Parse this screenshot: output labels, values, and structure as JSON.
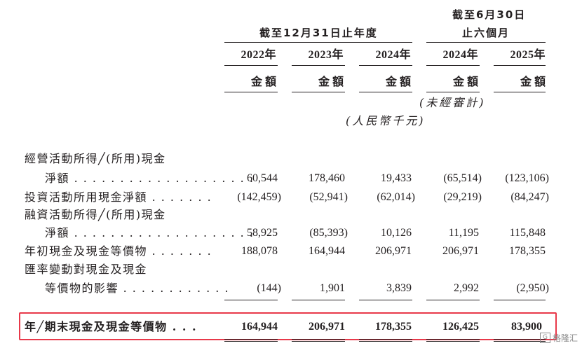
{
  "header": {
    "group_year": "截至12月31日止年度",
    "group_six_line1": "截至6月30日",
    "group_six_line2": "止六個月",
    "years": [
      "2022年",
      "2023年",
      "2024年",
      "2024年",
      "2025年"
    ],
    "amount_label": "金額",
    "unaudited": "(未經審計)",
    "unit": "(人民幣千元)"
  },
  "rows": [
    {
      "label_line1": "經營活動所得╱(所用)現金",
      "label_line2": "淨額 . . . . . . . . . . . . . . . . . . . .",
      "values": [
        "60,544",
        "178,460",
        "19,433",
        "(65,514)",
        "(123,106)"
      ]
    },
    {
      "label_line1": "投資活動所用現金淨額 . . . . . . .",
      "values": [
        "(142,459)",
        "(52,941)",
        "(62,014)",
        "(29,219)",
        "(84,247)"
      ]
    },
    {
      "label_line1": "融資活動所得╱(所用)現金",
      "label_line2": "淨額 . . . . . . . . . . . . . . . . . . . .",
      "values": [
        "58,925",
        "(85,393)",
        "10,126",
        "11,195",
        "115,848"
      ]
    },
    {
      "label_line1": "年初現金及現金等價物 . . . . . . .",
      "values": [
        "188,078",
        "164,944",
        "206,971",
        "206,971",
        "178,355"
      ]
    },
    {
      "label_line1": "匯率變動對現金及現金",
      "label_line2": "等價物的影響 . . . . . . . . . . . .",
      "values": [
        "(144)",
        "1,901",
        "3,839",
        "2,992",
        "(2,950)"
      ]
    }
  ],
  "total": {
    "label": "年╱期末現金及現金等價物 . . .",
    "values": [
      "164,944",
      "206,971",
      "178,355",
      "126,425",
      "83,900"
    ]
  },
  "watermark": "格隆汇"
}
